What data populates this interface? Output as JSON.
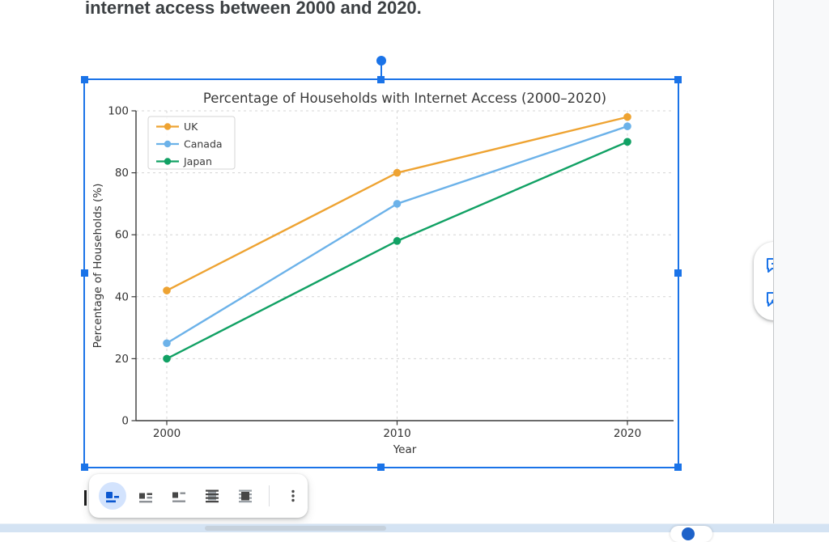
{
  "document": {
    "heading": "internet access between 2000 and 2020."
  },
  "chart_data": {
    "type": "line",
    "title": "Percentage of Households with Internet Access (2000–2020)",
    "xlabel": "Year",
    "ylabel": "Percentage of Households (%)",
    "x": [
      2000,
      2010,
      2020
    ],
    "xtick_labels": [
      "2000",
      "2010",
      "2020"
    ],
    "yticks": [
      0,
      20,
      40,
      60,
      80,
      100
    ],
    "ylim": [
      0,
      100
    ],
    "grid": true,
    "legend_position": "upper-left",
    "series": [
      {
        "name": "UK",
        "color": "#eea332",
        "values": [
          42,
          80,
          98
        ]
      },
      {
        "name": "Canada",
        "color": "#6cb2e9",
        "values": [
          25,
          70,
          95
        ]
      },
      {
        "name": "Japan",
        "color": "#11a164",
        "values": [
          20,
          58,
          90
        ]
      }
    ]
  },
  "selection": {
    "accent_color": "#1a73e8",
    "handles": [
      "top-left",
      "top-middle",
      "top-right",
      "middle-left",
      "middle-right",
      "bottom-left",
      "bottom-middle",
      "bottom-right"
    ],
    "rotate_handle": true
  },
  "side_panel": {
    "buttons": [
      {
        "icon": "add-comment-icon"
      },
      {
        "icon": "suggest-edits-icon"
      }
    ]
  },
  "image_toolbar": {
    "selected": "in-line",
    "selected_bg": "#d3e3fd",
    "options": [
      {
        "icon": "in-line-icon"
      },
      {
        "icon": "wrap-text-icon"
      },
      {
        "icon": "break-text-icon"
      },
      {
        "icon": "behind-text-icon"
      },
      {
        "icon": "in-front-of-text-icon"
      }
    ],
    "more": {
      "icon": "more-options-icon"
    }
  },
  "chrome": {
    "bottom_strip_color": "#d4e3f3",
    "gutter_color": "#f8f9fa"
  }
}
